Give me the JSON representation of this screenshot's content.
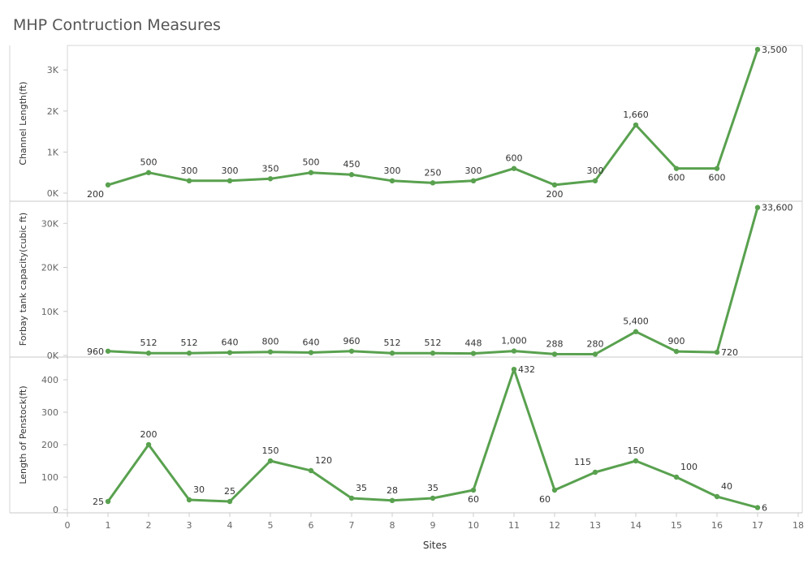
{
  "title": "MHP Contruction Measures",
  "chart_data": {
    "type": "line",
    "xlabel": "Sites",
    "x": [
      1,
      2,
      3,
      4,
      5,
      6,
      7,
      8,
      9,
      10,
      11,
      12,
      13,
      14,
      15,
      16,
      17
    ],
    "xlim": [
      0,
      18
    ],
    "x_ticks": [
      "0",
      "1",
      "2",
      "3",
      "4",
      "5",
      "6",
      "7",
      "8",
      "9",
      "10",
      "11",
      "12",
      "13",
      "14",
      "15",
      "16",
      "17",
      "18"
    ],
    "line_color": "#59a14f",
    "grid": false,
    "panels": [
      {
        "name": "Channel Length(ft)",
        "values": [
          200,
          500,
          300,
          300,
          350,
          500,
          450,
          300,
          250,
          300,
          600,
          200,
          300,
          1660,
          600,
          600,
          3500
        ],
        "labels": [
          "200",
          "500",
          "300",
          "300",
          "350",
          "500",
          "450",
          "300",
          "250",
          "300",
          "600",
          "200",
          "300",
          "1,660",
          "600",
          "600",
          "3,500"
        ],
        "ylim": [
          0,
          3400
        ],
        "y_ticks": [
          {
            "v": 0,
            "t": "0K"
          },
          {
            "v": 1000,
            "t": "1K"
          },
          {
            "v": 2000,
            "t": "2K"
          },
          {
            "v": 3000,
            "t": "3K"
          }
        ]
      },
      {
        "name": "Forbay tank capacity(cubic ft)",
        "values": [
          960,
          512,
          512,
          640,
          800,
          640,
          960,
          512,
          512,
          448,
          1000,
          288,
          280,
          5400,
          900,
          720,
          33600
        ],
        "labels": [
          "960",
          "512",
          "512",
          "640",
          "800",
          "640",
          "960",
          "512",
          "512",
          "448",
          "1,000",
          "288",
          "280",
          "5,400",
          "900",
          "720",
          "33,600"
        ],
        "ylim": [
          0,
          33000
        ],
        "y_ticks": [
          {
            "v": 0,
            "t": "0K"
          },
          {
            "v": 10000,
            "t": "10K"
          },
          {
            "v": 20000,
            "t": "20K"
          },
          {
            "v": 30000,
            "t": "30K"
          }
        ]
      },
      {
        "name": "Length of Penstock(ft)",
        "values": [
          25,
          200,
          30,
          25,
          150,
          120,
          35,
          28,
          35,
          60,
          432,
          60,
          115,
          150,
          100,
          40,
          6
        ],
        "labels": [
          "25",
          "200",
          "30",
          "25",
          "150",
          "120",
          "35",
          "28",
          "35",
          "60",
          "432",
          "60",
          "115",
          "150",
          "100",
          "40",
          "6"
        ],
        "ylim": [
          0,
          440
        ],
        "y_ticks": [
          {
            "v": 0,
            "t": "0"
          },
          {
            "v": 100,
            "t": "100"
          },
          {
            "v": 200,
            "t": "200"
          },
          {
            "v": 300,
            "t": "300"
          },
          {
            "v": 400,
            "t": "400"
          }
        ]
      }
    ]
  }
}
